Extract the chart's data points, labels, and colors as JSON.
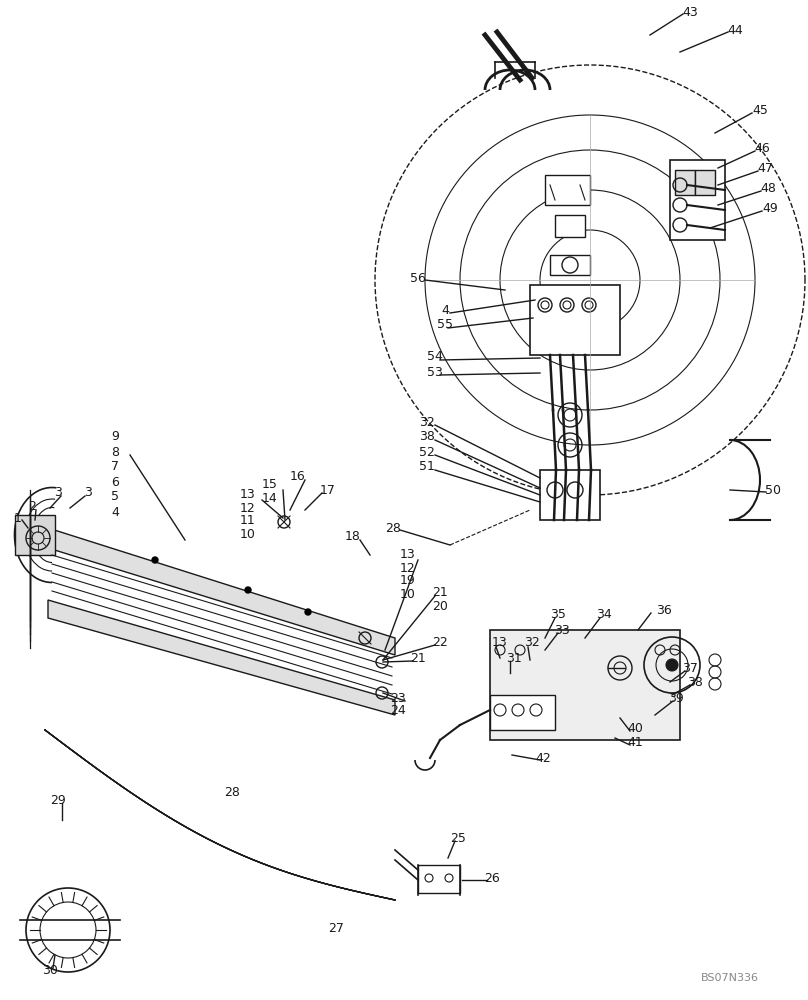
{
  "background_color": "#ffffff",
  "watermark": "BS07N336",
  "line_color": "#1a1a1a",
  "text_color": "#1a1a1a",
  "font_size": 9
}
